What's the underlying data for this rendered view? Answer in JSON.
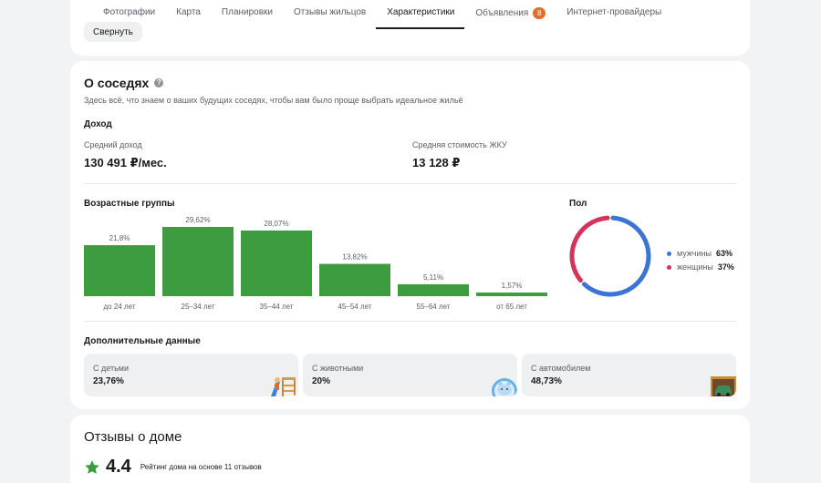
{
  "tabs": [
    {
      "label": "Фотографии"
    },
    {
      "label": "Карта"
    },
    {
      "label": "Планировки"
    },
    {
      "label": "Отзывы жильцов"
    },
    {
      "label": "Характеристики",
      "active": true
    },
    {
      "label": "Объявления",
      "badge": "8"
    },
    {
      "label": "Интернет-провайдеры"
    }
  ],
  "collapse_label": "Свернуть",
  "neighbors": {
    "title": "О соседях",
    "subtitle": "Здесь всё, что знаем о ваших будущих соседях, чтобы вам было проще выбрать идеальное жильё",
    "income": {
      "heading": "Доход",
      "avg_label": "Средний доход",
      "avg_value": "130 491 ₽/мес.",
      "utility_label": "Средняя стоимость ЖКУ",
      "utility_value": "13 128 ₽"
    },
    "age_heading": "Возрастные группы",
    "gender_heading": "Пол",
    "gender": [
      {
        "label": "мужчины",
        "value": "63%",
        "color": "#3b74d4"
      },
      {
        "label": "женщины",
        "value": "37%",
        "color": "#d6335c"
      }
    ],
    "extra_heading": "Дополнительные данные",
    "extra": [
      {
        "label": "С детьми",
        "value": "23,76%",
        "icon": "playground-icon"
      },
      {
        "label": "С животными",
        "value": "20%",
        "icon": "cat-icon"
      },
      {
        "label": "С автомобилем",
        "value": "48,73%",
        "icon": "car-icon"
      }
    ]
  },
  "chart_data": {
    "type": "bar",
    "categories": [
      "до 24 лет",
      "25–34 лет",
      "35–44 лет",
      "45–54 лет",
      "55–64 лет",
      "от 65 лет"
    ],
    "values": [
      21.8,
      29.62,
      28.07,
      13.82,
      5.11,
      1.57
    ],
    "value_labels": [
      "21,8%",
      "29,62%",
      "28,07%",
      "13,82%",
      "5,11%",
      "1,57%"
    ],
    "color": "#3d9c3f"
  },
  "gender_chart": {
    "type": "pie",
    "categories": [
      "мужчины",
      "женщины"
    ],
    "values": [
      63,
      37
    ]
  },
  "reviews": {
    "title": "Отзывы о доме",
    "score": "4.4",
    "caption": "Рейтинг дома на основе 11 отзывов",
    "star_color": "#3d9c3f"
  }
}
